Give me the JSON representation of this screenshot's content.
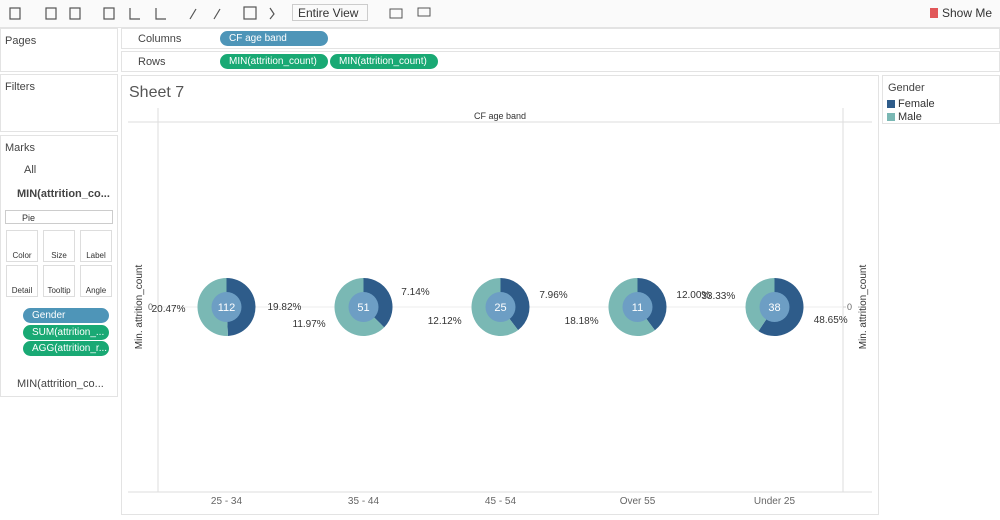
{
  "toolbar": {
    "view_mode": "Entire View",
    "show_me": "Show Me"
  },
  "shelves": {
    "pages": "Pages",
    "columns": {
      "label": "Columns",
      "pills": [
        "CF age band"
      ]
    },
    "rows": {
      "label": "Rows",
      "pills": [
        "MIN(attrition_count)",
        "MIN(attrition_count)"
      ]
    },
    "filters": "Filters"
  },
  "marks": {
    "title": "Marks",
    "all": "All",
    "measure_1": "MIN(attrition_co...",
    "mark_type": "Pie",
    "buttons": [
      "Color",
      "Size",
      "Label",
      "Detail",
      "Tooltip",
      "Angle"
    ],
    "fields": [
      "Gender",
      "SUM(attrition_...",
      "AGG(attrition_r..."
    ],
    "measure_2": "MIN(attrition_co..."
  },
  "sheet_title": "Sheet 7",
  "chart_data": {
    "type": "pie",
    "column_header": "CF age band",
    "y_label": "Min. attrition_count",
    "y2_label": "Min. attrition_count",
    "categories": [
      "25 - 34",
      "35 - 44",
      "45 - 54",
      "Over 55",
      "Under 25"
    ],
    "totals": [
      112,
      51,
      25,
      11,
      38
    ],
    "series": [
      {
        "name": "Female",
        "color": "#2e5c8a",
        "values": [
          19.82,
          7.14,
          7.96,
          12.0,
          48.65
        ],
        "value_labels": [
          "19.82%",
          "7.14%",
          "7.96%",
          "12.00%",
          "48.65%"
        ]
      },
      {
        "name": "Male",
        "color": "#7ab8b4",
        "values": [
          20.47,
          11.97,
          12.12,
          18.18,
          33.33
        ],
        "value_labels": [
          "20.47%",
          "11.97%",
          "12.12%",
          "18.18%",
          "33.33%"
        ]
      }
    ],
    "ylim": [
      -1,
      1
    ],
    "yticks": [
      0
    ],
    "y2lim": [
      -1,
      1
    ],
    "y2ticks": [
      0
    ],
    "legend_title": "Gender",
    "legend": "right"
  }
}
